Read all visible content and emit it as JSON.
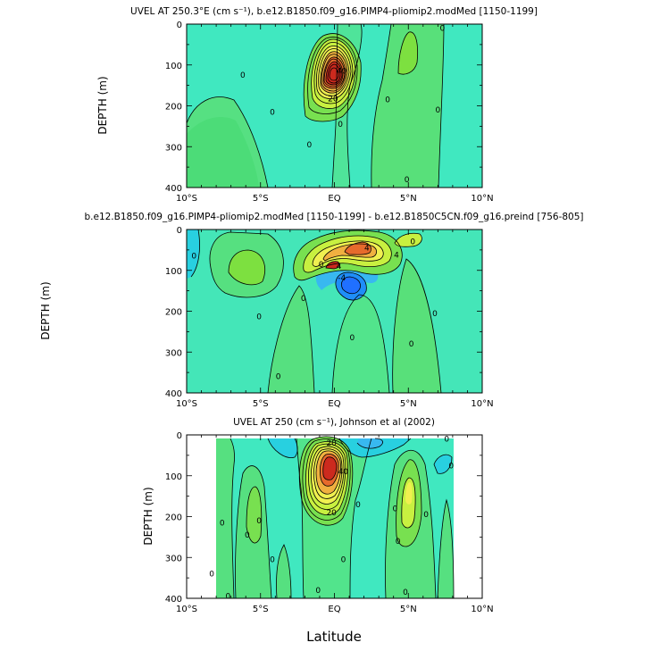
{
  "figure": {
    "xlabel": "Latitude"
  },
  "chart_data": [
    {
      "type": "contour",
      "title": "UVEL AT 250.3°E (cm s⁻¹), b.e12.B1850.f09_g16.PIMP4-pliomip2.modMed [1150-1199]",
      "xlabel": "Latitude",
      "ylabel": "DEPTH (m)",
      "xlim": [
        -10,
        10
      ],
      "ylim": [
        400,
        0
      ],
      "x_tick_labels": [
        "10°S",
        "5°S",
        "EQ",
        "5°N",
        "10°N"
      ],
      "y_tick_labels": [
        "0",
        "100",
        "200",
        "300",
        "400"
      ],
      "contour_labels": [
        {
          "text": "0",
          "lat": -6.2,
          "depth": 125
        },
        {
          "text": "0",
          "lat": -4.2,
          "depth": 215
        },
        {
          "text": "0",
          "lat": -1.7,
          "depth": 295
        },
        {
          "text": "0",
          "lat": 0.4,
          "depth": 245
        },
        {
          "text": "0",
          "lat": 3.6,
          "depth": 185
        },
        {
          "text": "0",
          "lat": 4.9,
          "depth": 380
        },
        {
          "text": "0",
          "lat": 7.0,
          "depth": 210
        },
        {
          "text": "0",
          "lat": 7.3,
          "depth": 10
        },
        {
          "text": "20",
          "lat": -0.1,
          "depth": 183
        },
        {
          "text": "40",
          "lat": 0.5,
          "depth": 115
        }
      ],
      "features": [
        {
          "name": "Equatorial Undercurrent core",
          "lat": 0.0,
          "depth": 85,
          "value_max": 110
        },
        {
          "name": "off-equatorial eastward jet",
          "lat": 5.2,
          "depth": 70,
          "value_max": 15
        }
      ]
    },
    {
      "type": "contour",
      "title": "b.e12.B1850.f09_g16.PIMP4-pliomip2.modMed [1150-1199] - b.e12.B1850C5CN.f09_g16.preind [756-805]",
      "xlabel": "",
      "ylabel": "DEPTH (m)",
      "xlim": [
        -10,
        10
      ],
      "ylim": [
        400,
        0
      ],
      "x_tick_labels": [
        "10°S",
        "5°S",
        "EQ",
        "5°N",
        "10°N"
      ],
      "y_tick_labels": [
        "0",
        "100",
        "200",
        "300",
        "400"
      ],
      "contour_labels": [
        {
          "text": "0",
          "lat": -9.5,
          "depth": 65
        },
        {
          "text": "0",
          "lat": -5.1,
          "depth": 213
        },
        {
          "text": "0",
          "lat": -3.8,
          "depth": 360
        },
        {
          "text": "0",
          "lat": -0.9,
          "depth": 85
        },
        {
          "text": "0",
          "lat": -2.1,
          "depth": 168
        },
        {
          "text": "0",
          "lat": 1.2,
          "depth": 265
        },
        {
          "text": "0",
          "lat": 1.0,
          "depth": 530
        },
        {
          "text": "0",
          "lat": 5.2,
          "depth": 280
        },
        {
          "text": "0",
          "lat": 6.8,
          "depth": 205
        },
        {
          "text": "0",
          "lat": 5.3,
          "depth": 30
        },
        {
          "text": "4",
          "lat": 2.2,
          "depth": 45
        },
        {
          "text": "4",
          "lat": 4.2,
          "depth": 62
        },
        {
          "text": "4",
          "lat": 0.3,
          "depth": 90
        },
        {
          "text": "-4",
          "lat": 0.5,
          "depth": 118
        }
      ],
      "features": [
        {
          "name": "positive anomaly",
          "lat": 1.8,
          "depth": 60,
          "value_max": 12
        },
        {
          "name": "negative anomaly",
          "lat": 0.6,
          "depth": 125,
          "value_min": -6
        }
      ]
    },
    {
      "type": "contour",
      "title": "UVEL AT 250 (cm s⁻¹), Johnson et al (2002)",
      "xlabel": "",
      "ylabel": "DEPTH (m)",
      "xlim": [
        -10,
        10
      ],
      "ylim": [
        400,
        0
      ],
      "data_lat_range": [
        -8,
        8
      ],
      "data_depth_range": [
        10,
        400
      ],
      "x_tick_labels": [
        "10°S",
        "5°S",
        "EQ",
        "5°N",
        "10°N"
      ],
      "y_tick_labels": [
        "0",
        "100",
        "200",
        "300",
        "400"
      ],
      "contour_labels": [
        {
          "text": "0",
          "lat": -7.6,
          "depth": 215
        },
        {
          "text": "0",
          "lat": -5.9,
          "depth": 245
        },
        {
          "text": "0",
          "lat": -5.1,
          "depth": 210
        },
        {
          "text": "0",
          "lat": -4.2,
          "depth": 305
        },
        {
          "text": "0",
          "lat": -7.2,
          "depth": 395
        },
        {
          "text": "0",
          "lat": -1.1,
          "depth": 380
        },
        {
          "text": "0",
          "lat": 0.6,
          "depth": 305
        },
        {
          "text": "0",
          "lat": 1.6,
          "depth": 170
        },
        {
          "text": "0",
          "lat": 4.1,
          "depth": 180
        },
        {
          "text": "0",
          "lat": 4.3,
          "depth": 260
        },
        {
          "text": "0",
          "lat": 4.8,
          "depth": 385
        },
        {
          "text": "0",
          "lat": 6.2,
          "depth": 195
        },
        {
          "text": "0",
          "lat": 7.9,
          "depth": 75
        },
        {
          "text": "0",
          "lat": 7.6,
          "depth": 10
        },
        {
          "text": "0",
          "lat": -8.3,
          "depth": 340
        },
        {
          "text": "20",
          "lat": -0.2,
          "depth": 190
        },
        {
          "text": "20",
          "lat": -0.2,
          "depth": 20
        },
        {
          "text": "40",
          "lat": 0.6,
          "depth": 90
        }
      ],
      "features": [
        {
          "name": "Equatorial Undercurrent core",
          "lat": -0.2,
          "depth": 75,
          "value_max": 100
        },
        {
          "name": "northern subsurface countercurrent",
          "lat": 5.0,
          "depth": 140,
          "value_max": 15
        },
        {
          "name": "southern subsurface countercurrent",
          "lat": -4.8,
          "depth": 150,
          "value_max": 10
        },
        {
          "name": "westward surface flow",
          "lat": 2.0,
          "depth": 20,
          "value_min": -15
        }
      ]
    }
  ]
}
